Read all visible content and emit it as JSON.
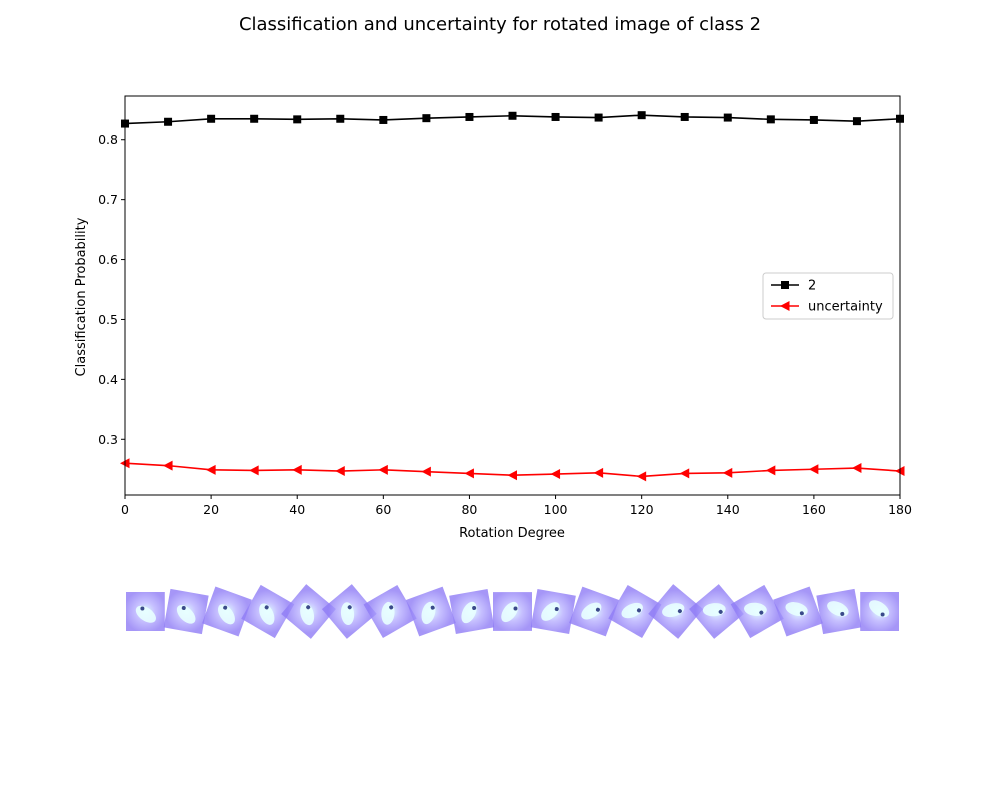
{
  "chart_data": {
    "type": "line",
    "title": "Classification and uncertainty for rotated image of class 2",
    "xlabel": "Rotation Degree",
    "ylabel": "Classification Probability",
    "xlim": [
      0,
      180
    ],
    "ylim": [
      0.207,
      0.873
    ],
    "x": [
      0,
      10,
      20,
      30,
      40,
      50,
      60,
      70,
      80,
      90,
      100,
      110,
      120,
      130,
      140,
      150,
      160,
      170,
      180
    ],
    "xticks": [
      0,
      20,
      40,
      60,
      80,
      100,
      120,
      140,
      160,
      180
    ],
    "yticks": [
      0.3,
      0.4,
      0.5,
      0.6,
      0.7,
      0.8
    ],
    "grid": false,
    "legend_position": "center-right",
    "series": [
      {
        "name": "2",
        "color": "#000000",
        "marker": "square",
        "values": [
          0.827,
          0.83,
          0.835,
          0.835,
          0.834,
          0.835,
          0.833,
          0.836,
          0.838,
          0.84,
          0.838,
          0.837,
          0.841,
          0.838,
          0.837,
          0.834,
          0.833,
          0.831,
          0.835
        ]
      },
      {
        "name": "uncertainty",
        "color": "#ff0000",
        "marker": "triangle-left",
        "values": [
          0.26,
          0.256,
          0.249,
          0.248,
          0.249,
          0.247,
          0.249,
          0.246,
          0.243,
          0.24,
          0.242,
          0.244,
          0.238,
          0.243,
          0.244,
          0.248,
          0.25,
          0.252,
          0.247
        ]
      }
    ]
  },
  "thumbnails": {
    "count": 19,
    "subject": "rotated digit image"
  }
}
